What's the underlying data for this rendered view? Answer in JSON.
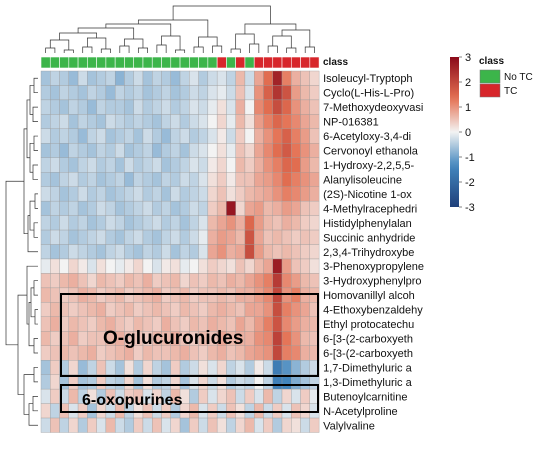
{
  "chart_data": {
    "type": "heatmap",
    "annotation_title": "class",
    "columns_class": [
      "No TC",
      "No TC",
      "No TC",
      "No TC",
      "No TC",
      "No TC",
      "No TC",
      "No TC",
      "No TC",
      "No TC",
      "No TC",
      "No TC",
      "No TC",
      "No TC",
      "No TC",
      "No TC",
      "No TC",
      "No TC",
      "No TC",
      "TC",
      "No TC",
      "TC",
      "No TC",
      "TC",
      "TC",
      "TC",
      "TC",
      "TC",
      "TC",
      "TC"
    ],
    "rows": [
      "Isoleucyl-Tryptoph",
      "Cyclo(L-His-L-Pro)",
      "7-Methoxydeoxyvasi",
      "NP-016381",
      "6-Acetyloxy-3,4-di",
      "Cervonoyl ethanola",
      "1-Hydroxy-2,2,5,5-",
      "Alanylisoleucine",
      "(2S)-Nicotine 1-ox",
      "4-Methylracephedri",
      "Histidylphenylalan",
      "Succinic anhydride",
      "2,3,4-Trihydroxybe",
      "3-Phenoxypropylene",
      "3-Hydroxyphenylpro",
      "Homovanillyl alcoh",
      "4-Ethoxybenzaldehy",
      "Ethyl protocatechu",
      "6-[3-(2-carboxyeth",
      "6-[3-(2-carboxyeth",
      "1,7-Dimethyluric a",
      "1,3-Dimethyluric a",
      "Butenoylcarnitine",
      "N-Acetylproline",
      "Valylvaline"
    ],
    "values": [
      [
        -0.6,
        -0.4,
        -0.5,
        -0.7,
        -0.3,
        -0.6,
        -0.5,
        -0.4,
        -0.8,
        -0.5,
        -0.3,
        -0.6,
        -0.4,
        -0.5,
        -0.7,
        -0.4,
        -0.2,
        -0.5,
        -0.3,
        -0.2,
        -0.4,
        0.6,
        -0.3,
        0.8,
        1.4,
        2.6,
        1.2,
        0.7,
        0.5,
        0.3
      ],
      [
        -0.5,
        -0.6,
        -0.4,
        -0.5,
        -0.6,
        -0.4,
        -0.5,
        -0.7,
        -0.4,
        -0.5,
        -0.4,
        -0.6,
        -0.5,
        -0.4,
        -0.6,
        -0.5,
        -0.3,
        -0.4,
        -0.2,
        -0.1,
        -0.3,
        0.5,
        -0.2,
        1.0,
        1.6,
        2.3,
        1.8,
        0.9,
        0.6,
        0.4
      ],
      [
        -0.4,
        -0.5,
        -0.6,
        -0.4,
        -0.5,
        -0.7,
        -0.4,
        -0.5,
        -0.5,
        -0.6,
        -0.3,
        -0.5,
        -0.4,
        -0.3,
        -0.5,
        -0.4,
        -0.2,
        -0.3,
        -0.1,
        0.2,
        -0.2,
        0.7,
        0.0,
        1.1,
        1.4,
        1.9,
        1.5,
        1.0,
        0.7,
        0.5
      ],
      [
        -0.5,
        -0.4,
        -0.3,
        -0.6,
        -0.4,
        -0.5,
        -0.6,
        -0.3,
        -0.4,
        -0.5,
        -0.4,
        -0.5,
        -0.6,
        -0.4,
        -0.3,
        -0.5,
        -0.3,
        -0.2,
        0.0,
        0.3,
        -0.1,
        0.6,
        0.2,
        0.9,
        1.2,
        1.5,
        1.3,
        1.1,
        0.8,
        0.6
      ],
      [
        -0.3,
        -0.5,
        -0.4,
        -0.5,
        -0.7,
        -0.4,
        -0.3,
        -0.6,
        -0.5,
        -0.4,
        -0.6,
        -0.3,
        -0.5,
        -0.7,
        -0.4,
        -0.3,
        -0.5,
        -0.4,
        -0.2,
        0.1,
        -0.3,
        0.4,
        0.0,
        0.7,
        1.0,
        1.3,
        1.6,
        1.2,
        0.9,
        0.5
      ],
      [
        -0.6,
        -0.5,
        -0.7,
        -0.4,
        -0.5,
        -0.6,
        -0.4,
        -0.5,
        -0.3,
        -0.6,
        -0.5,
        -0.4,
        -0.7,
        -0.5,
        -0.4,
        -0.6,
        -0.3,
        -0.2,
        0.0,
        0.2,
        -0.1,
        0.5,
        0.3,
        0.8,
        1.1,
        1.4,
        1.7,
        1.3,
        1.0,
        0.7
      ],
      [
        -0.4,
        -0.3,
        -0.5,
        -0.6,
        -0.4,
        -0.3,
        -0.5,
        -0.4,
        -0.6,
        -0.3,
        -0.5,
        -0.4,
        -0.3,
        -0.6,
        -0.5,
        -0.4,
        -0.2,
        -0.3,
        0.1,
        0.3,
        0.0,
        0.6,
        0.4,
        0.7,
        1.0,
        1.2,
        1.5,
        1.4,
        0.9,
        0.6
      ],
      [
        -0.5,
        -0.6,
        -0.4,
        -0.3,
        -0.5,
        -0.4,
        -0.6,
        -0.5,
        -0.4,
        -0.7,
        -0.4,
        -0.5,
        -0.6,
        -0.4,
        -0.5,
        -0.3,
        -0.4,
        -0.2,
        0.2,
        0.4,
        0.1,
        0.5,
        0.5,
        0.8,
        0.9,
        1.1,
        1.4,
        1.2,
        1.0,
        0.8
      ],
      [
        -0.3,
        -0.4,
        -0.6,
        -0.5,
        -0.3,
        -0.5,
        -0.4,
        -0.6,
        -0.5,
        -0.4,
        -0.3,
        -0.5,
        -0.4,
        -0.6,
        -0.3,
        -0.5,
        -0.4,
        -0.3,
        0.3,
        0.5,
        0.2,
        0.4,
        0.6,
        0.7,
        0.8,
        1.0,
        1.2,
        1.1,
        0.9,
        0.7
      ],
      [
        -0.6,
        -0.4,
        -0.5,
        -0.4,
        -0.6,
        -0.5,
        -0.3,
        -0.4,
        -0.6,
        -0.5,
        -0.4,
        -0.3,
        -0.5,
        -0.4,
        -0.6,
        -0.5,
        -0.3,
        -0.4,
        0.4,
        0.6,
        2.8,
        0.3,
        0.8,
        0.9,
        0.6,
        0.7,
        0.9,
        0.8,
        0.5,
        0.4
      ],
      [
        -0.4,
        -0.5,
        -0.3,
        -0.5,
        -0.4,
        -0.6,
        -0.5,
        -0.3,
        -0.4,
        -0.6,
        -0.5,
        -0.4,
        -0.3,
        -0.5,
        -0.4,
        -0.6,
        -0.4,
        -0.2,
        0.6,
        0.8,
        1.0,
        0.7,
        1.5,
        0.9,
        0.6,
        0.5,
        0.7,
        0.6,
        0.4,
        0.3
      ],
      [
        -0.5,
        -0.3,
        -0.4,
        -0.6,
        -0.5,
        -0.4,
        -0.3,
        -0.5,
        -0.6,
        -0.4,
        -0.3,
        -0.5,
        -0.6,
        -0.4,
        -0.3,
        -0.5,
        -0.3,
        -0.1,
        0.7,
        0.9,
        0.8,
        0.6,
        1.8,
        0.8,
        0.5,
        0.6,
        0.5,
        0.4,
        0.5,
        0.4
      ],
      [
        -0.4,
        -0.6,
        -0.5,
        -0.3,
        -0.4,
        -0.5,
        -0.6,
        -0.4,
        -0.3,
        -0.5,
        -0.6,
        -0.4,
        -0.5,
        -0.3,
        -0.6,
        -0.4,
        -0.5,
        -0.2,
        0.8,
        1.0,
        0.7,
        0.8,
        1.9,
        0.9,
        0.6,
        0.5,
        0.6,
        0.5,
        0.4,
        0.3
      ],
      [
        -0.1,
        0.2,
        0.0,
        0.3,
        0.1,
        -0.2,
        0.2,
        0.0,
        -0.1,
        0.1,
        0.3,
        0.0,
        -0.2,
        0.1,
        0.2,
        -0.1,
        0.0,
        0.2,
        0.4,
        0.3,
        0.2,
        0.5,
        0.3,
        0.6,
        0.8,
        2.7,
        0.9,
        0.5,
        0.4,
        0.2
      ],
      [
        0.5,
        0.4,
        0.6,
        0.7,
        0.5,
        0.3,
        0.6,
        0.5,
        0.4,
        0.6,
        0.5,
        0.7,
        0.4,
        0.5,
        0.6,
        0.3,
        0.5,
        0.4,
        0.6,
        0.5,
        0.7,
        0.6,
        0.8,
        1.0,
        1.2,
        2.2,
        1.1,
        0.9,
        0.6,
        0.5
      ],
      [
        0.6,
        0.5,
        0.4,
        0.5,
        0.7,
        0.6,
        0.4,
        0.5,
        0.6,
        0.4,
        0.5,
        0.6,
        0.7,
        0.4,
        0.5,
        0.6,
        0.4,
        0.5,
        0.5,
        0.6,
        0.5,
        0.7,
        0.7,
        0.9,
        1.1,
        2.0,
        1.0,
        1.2,
        0.7,
        0.6
      ],
      [
        0.4,
        0.6,
        0.5,
        0.4,
        0.5,
        0.6,
        0.7,
        0.4,
        0.5,
        0.6,
        0.4,
        0.5,
        0.6,
        0.5,
        0.4,
        0.6,
        0.5,
        0.4,
        0.6,
        0.7,
        0.6,
        0.5,
        0.8,
        0.8,
        1.0,
        1.9,
        1.2,
        1.0,
        0.8,
        0.5
      ],
      [
        0.5,
        0.7,
        0.4,
        0.6,
        0.5,
        0.4,
        0.6,
        0.7,
        0.5,
        0.4,
        0.6,
        0.5,
        0.4,
        0.7,
        0.5,
        0.4,
        0.6,
        0.5,
        0.7,
        0.6,
        0.5,
        0.8,
        0.6,
        0.9,
        1.2,
        1.8,
        1.1,
        0.9,
        0.7,
        0.6
      ],
      [
        0.6,
        0.4,
        0.5,
        0.7,
        0.4,
        0.5,
        0.5,
        0.6,
        0.7,
        0.5,
        0.5,
        0.4,
        0.6,
        0.6,
        0.7,
        0.5,
        0.4,
        0.6,
        0.5,
        0.8,
        0.6,
        0.7,
        0.7,
        1.0,
        1.1,
        2.1,
        1.3,
        1.0,
        0.6,
        0.5
      ],
      [
        0.4,
        0.5,
        0.6,
        0.5,
        0.6,
        0.7,
        0.4,
        0.5,
        0.6,
        0.7,
        0.4,
        0.6,
        0.5,
        0.5,
        0.6,
        0.7,
        0.5,
        0.4,
        0.6,
        0.7,
        0.5,
        0.6,
        0.8,
        0.9,
        1.0,
        2.0,
        1.2,
        1.1,
        0.7,
        0.6
      ],
      [
        -0.6,
        0.4,
        -0.5,
        0.3,
        -0.7,
        -0.4,
        0.5,
        -0.3,
        -0.6,
        0.2,
        -0.5,
        0.3,
        -0.4,
        -0.6,
        0.4,
        -0.5,
        -0.3,
        0.2,
        -0.2,
        0.3,
        -0.4,
        -0.2,
        -0.5,
        0.1,
        -0.3,
        -1.6,
        -1.2,
        -0.8,
        -0.5,
        -0.3
      ],
      [
        -0.5,
        0.3,
        -0.6,
        0.4,
        -0.6,
        -0.5,
        0.4,
        -0.4,
        -0.5,
        0.3,
        -0.6,
        0.2,
        -0.5,
        -0.4,
        0.3,
        -0.6,
        -0.2,
        0.3,
        -0.3,
        0.2,
        -0.5,
        -0.3,
        -0.4,
        0.0,
        -0.4,
        -1.5,
        -1.4,
        -0.9,
        -0.6,
        -0.4
      ],
      [
        -0.2,
        0.4,
        -0.3,
        0.6,
        -0.4,
        0.2,
        -0.5,
        0.5,
        -0.3,
        0.4,
        0.5,
        -0.2,
        0.3,
        -0.4,
        0.6,
        0.2,
        -0.5,
        0.4,
        -0.2,
        0.3,
        0.5,
        -0.3,
        0.4,
        -0.2,
        0.6,
        -0.4,
        0.3,
        -0.2,
        0.4,
        -0.1
      ],
      [
        0.3,
        -0.4,
        0.5,
        -0.2,
        0.4,
        -0.6,
        0.3,
        -0.3,
        0.6,
        -0.4,
        0.2,
        0.5,
        -0.3,
        0.4,
        -0.5,
        0.3,
        0.6,
        -0.2,
        0.4,
        -0.3,
        0.5,
        0.2,
        -0.4,
        0.6,
        -0.3,
        0.4,
        -0.2,
        0.5,
        0.3,
        -0.2
      ],
      [
        -0.3,
        0.5,
        -0.4,
        0.3,
        -0.5,
        0.4,
        -0.2,
        0.6,
        -0.3,
        -0.5,
        0.4,
        -0.3,
        0.5,
        -0.2,
        0.3,
        -0.6,
        0.4,
        -0.3,
        0.5,
        0.2,
        -0.4,
        0.3,
        0.6,
        -0.2,
        0.4,
        -0.5,
        0.3,
        0.2,
        -0.3,
        0.4
      ]
    ],
    "color_scale": {
      "ticks": [
        3,
        2,
        1,
        0,
        -1,
        -2,
        -3
      ],
      "range": [
        -3,
        3
      ],
      "low_color": "#1f3f7a",
      "mid_color": "#f3f3f3",
      "high_color": "#8b0a1a"
    },
    "legend": {
      "title": "class",
      "entries": [
        {
          "label": "No TC",
          "color": "#3cb54a"
        },
        {
          "label": "TC",
          "color": "#d7262b"
        }
      ]
    },
    "callouts": [
      {
        "text": "O-glucuronides"
      },
      {
        "text": "6-oxopurines"
      }
    ]
  }
}
